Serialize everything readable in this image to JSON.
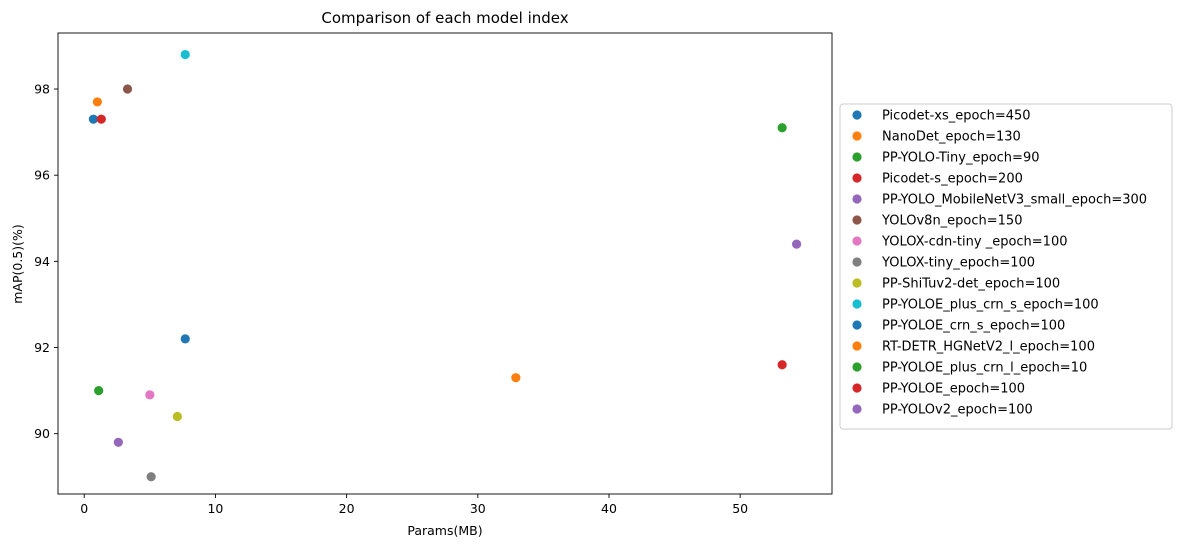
{
  "chart_data": {
    "type": "scatter",
    "title": "Comparison of each model index",
    "xlabel": "Params(MB)",
    "ylabel": "mAP(0.5)(%)",
    "xlim": [
      -2.0,
      57.0
    ],
    "ylim": [
      88.6,
      99.3
    ],
    "xticks": [
      0,
      10,
      20,
      30,
      40,
      50
    ],
    "yticks": [
      90,
      92,
      94,
      96,
      98
    ],
    "grid": false,
    "legend_position": "right",
    "series": [
      {
        "name": "Picodet-xs_epoch=450",
        "color": "#1f77b4",
        "x": 0.7,
        "y": 97.3
      },
      {
        "name": "NanoDet_epoch=130",
        "color": "#ff7f0e",
        "x": 1.0,
        "y": 97.7
      },
      {
        "name": "PP-YOLO-Tiny_epoch=90",
        "color": "#2ca02c",
        "x": 1.1,
        "y": 91.0
      },
      {
        "name": "Picodet-s_epoch=200",
        "color": "#d62728",
        "x": 1.3,
        "y": 97.3
      },
      {
        "name": "PP-YOLO_MobileNetV3_small_epoch=300",
        "color": "#9467bd",
        "x": 2.6,
        "y": 89.8
      },
      {
        "name": "YOLOv8n_epoch=150",
        "color": "#8c564b",
        "x": 3.3,
        "y": 98.0
      },
      {
        "name": "YOLOX-cdn-tiny _epoch=100",
        "color": "#e377c2",
        "x": 5.0,
        "y": 90.9
      },
      {
        "name": "YOLOX-tiny_epoch=100",
        "color": "#7f7f7f",
        "x": 5.1,
        "y": 89.0
      },
      {
        "name": "PP-ShiTuv2-det_epoch=100",
        "color": "#bcbd22",
        "x": 7.1,
        "y": 90.4
      },
      {
        "name": "PP-YOLOE_plus_crn_s_epoch=100",
        "color": "#17becf",
        "x": 7.7,
        "y": 98.8
      },
      {
        "name": "PP-YOLOE_crn_s_epoch=100",
        "color": "#1f77b4",
        "x": 7.7,
        "y": 92.2
      },
      {
        "name": "RT-DETR_HGNetV2_l_epoch=100",
        "color": "#ff7f0e",
        "x": 32.9,
        "y": 91.3
      },
      {
        "name": "PP-YOLOE_plus_crn_l_epoch=10",
        "color": "#2ca02c",
        "x": 53.2,
        "y": 97.1
      },
      {
        "name": "PP-YOLOE_epoch=100",
        "color": "#d62728",
        "x": 53.2,
        "y": 91.6
      },
      {
        "name": "PP-YOLOv2_epoch=100",
        "color": "#9467bd",
        "x": 54.3,
        "y": 94.4
      }
    ]
  }
}
